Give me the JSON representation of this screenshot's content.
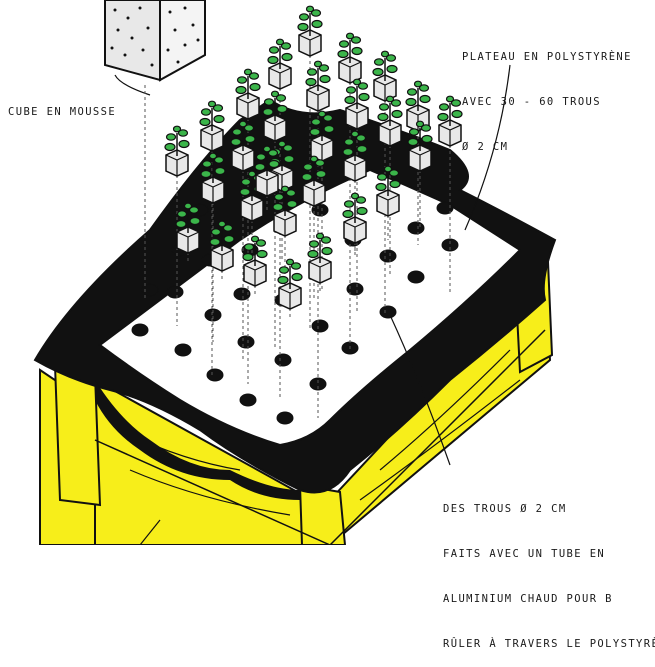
{
  "labels": {
    "plateau": [
      "PLATEAU EN POLYSTYRèNE",
      "AVEC 30 - 60 TROUS",
      "ø 2 CM"
    ],
    "cube": "CUBE EN MOUSSE",
    "trous": [
      "DES TROUS ø 2 CM",
      "FAITS AVEC UN TUBE EN",
      "ALUMINIUM CHAUD POUR B",
      "RûLER à TRAVERS LE POLYSTYRèNE."
    ]
  },
  "colors": {
    "wood": "#f7ee1a",
    "liner": "#111111",
    "tray": "#ffffff",
    "leaf": "#3bb54a",
    "cube": "#e8e8e8"
  }
}
